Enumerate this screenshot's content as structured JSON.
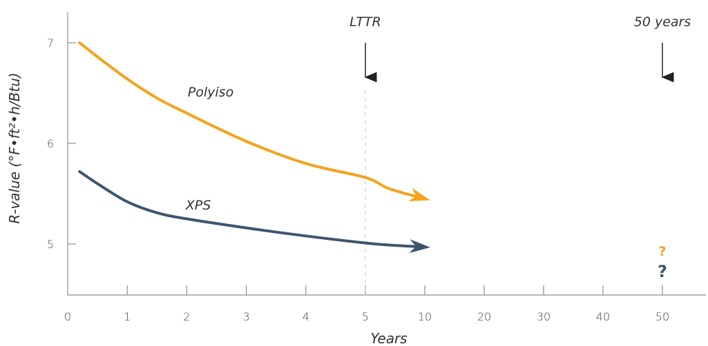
{
  "chart_data": {
    "type": "line",
    "xlabel": "Years",
    "ylabel": "R-value (°F•ft²•h/Btu)",
    "x_ticks": [
      "0",
      "1",
      "2",
      "3",
      "4",
      "5",
      "10",
      "20",
      "30",
      "40",
      "50"
    ],
    "x_tick_values": [
      0,
      1,
      2,
      3,
      4,
      5,
      10,
      20,
      30,
      40,
      50
    ],
    "y_ticks": [
      "5",
      "6",
      "7"
    ],
    "y_tick_values": [
      5,
      6,
      7
    ],
    "ylim": [
      4.5,
      7.3
    ],
    "grid": false,
    "series": [
      {
        "name": "Polyiso",
        "color": "#f5a21b",
        "x": [
          0.2,
          0.5,
          1,
          1.5,
          2,
          3,
          4,
          5,
          7,
          10
        ],
        "y": [
          7.0,
          6.86,
          6.64,
          6.45,
          6.3,
          6.02,
          5.8,
          5.66,
          5.55,
          5.45
        ],
        "value_at_50": "?"
      },
      {
        "name": "XPS",
        "color": "#3e556e",
        "x": [
          0.2,
          0.5,
          1,
          1.5,
          2,
          3,
          4,
          5,
          7,
          10
        ],
        "y": [
          5.72,
          5.6,
          5.42,
          5.31,
          5.25,
          5.16,
          5.08,
          5.01,
          4.99,
          4.97
        ],
        "value_at_50": "?"
      }
    ],
    "annotations": [
      {
        "text": "LTTR",
        "x": 5
      },
      {
        "text": "50 years",
        "x": 50
      }
    ]
  }
}
